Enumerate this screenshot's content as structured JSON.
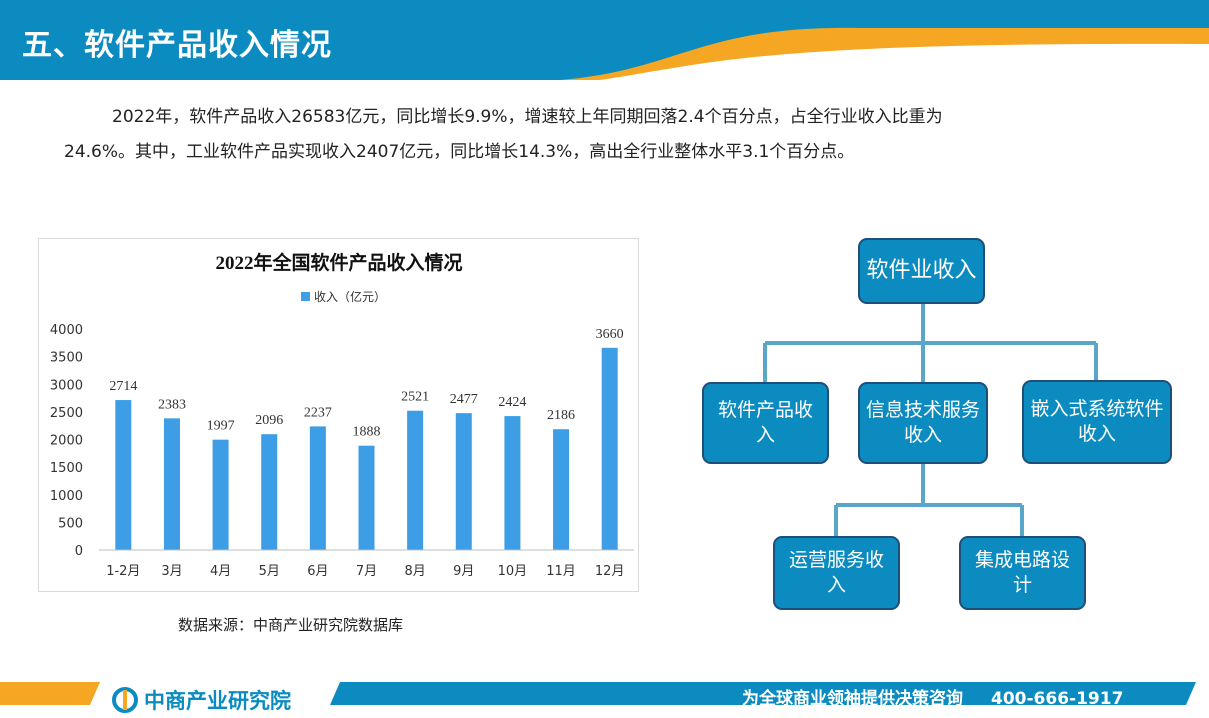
{
  "header": {
    "title": "五、软件产品收入情况"
  },
  "paragraph": {
    "line1": "2022年，软件产品收入26583亿元，同比增长9.9%，增速较上年同期回落2.4个百分点，占全行业收入比重为",
    "line2": "24.6%。其中，工业软件产品实现收入2407亿元，同比增长14.3%，高出全行业整体水平3.1个百分点。"
  },
  "chart_data": {
    "type": "bar",
    "title": "2022年全国软件产品收入情况",
    "categories": [
      "1-2月",
      "3月",
      "4月",
      "5月",
      "6月",
      "7月",
      "8月",
      "9月",
      "10月",
      "11月",
      "12月"
    ],
    "series": [
      {
        "name": "收入（亿元）",
        "values": [
          2714,
          2383,
          1997,
          2096,
          2237,
          1888,
          2521,
          2477,
          2424,
          2186,
          3660
        ]
      }
    ],
    "xlabel": "",
    "ylabel": "",
    "ylim": [
      0,
      4000
    ],
    "yticks": [
      0,
      500,
      1000,
      1500,
      2000,
      2500,
      3000,
      3500,
      4000
    ],
    "grid": false,
    "legend": "top-center",
    "bar_color": "#3d9de5"
  },
  "source": "数据来源：中商产业研究院数据库",
  "tree": {
    "root": "软件业收入",
    "level1": [
      "软件产品收入",
      "信息技术服务收入",
      "嵌入式系统软件收入"
    ],
    "level2": [
      "运营服务收入",
      "集成电路设计"
    ]
  },
  "footer": {
    "logo_text": "中商产业研究院",
    "slogan": "为全球商业领袖提供决策咨询",
    "phone": "400-666-1917"
  },
  "colors": {
    "primary": "#0b8bc0",
    "accent": "#f5a623",
    "box_border": "#1f4e79",
    "connector": "#5aa6c8"
  }
}
